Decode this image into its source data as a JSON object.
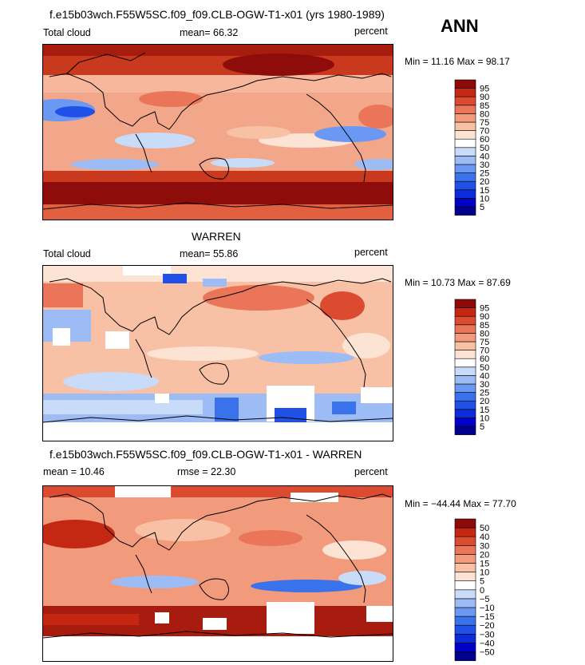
{
  "season": "ANN",
  "panels": [
    {
      "title": "f.e15b03wch.F55W5SC.f09_f09.CLB-OGW-T1-x01 (yrs 1980-1989)",
      "left_label": "Total cloud",
      "mean_label": "mean=  66.32",
      "units": "percent",
      "minmax": "Min =  11.16 Max =  98.17",
      "colorbar": {
        "labels": [
          "5",
          "10",
          "15",
          "20",
          "25",
          "30",
          "40",
          "50",
          "60",
          "70",
          "75",
          "80",
          "85",
          "90",
          "95"
        ],
        "colors": [
          "#00008f",
          "#0000c8",
          "#0c2cdc",
          "#2050e6",
          "#3a72ec",
          "#6a98f2",
          "#9dbcf6",
          "#c8dcfa",
          "#ffffff",
          "#fde3d4",
          "#f8c0a4",
          "#f29b7c",
          "#ea7558",
          "#dc4a2f",
          "#c42712",
          "#8c0a0a"
        ]
      }
    },
    {
      "title": "WARREN",
      "left_label": "Total cloud",
      "mean_label": "mean=  55.86",
      "units": "percent",
      "minmax": "Min =  10.73 Max =  87.69",
      "colorbar": {
        "labels": [
          "5",
          "10",
          "15",
          "20",
          "25",
          "30",
          "40",
          "50",
          "60",
          "70",
          "75",
          "80",
          "85",
          "90",
          "95"
        ],
        "colors": [
          "#00008f",
          "#0000c8",
          "#0c2cdc",
          "#2050e6",
          "#3a72ec",
          "#6a98f2",
          "#9dbcf6",
          "#c8dcfa",
          "#ffffff",
          "#fde3d4",
          "#f8c0a4",
          "#f29b7c",
          "#ea7558",
          "#dc4a2f",
          "#c42712",
          "#8c0a0a"
        ]
      }
    },
    {
      "title": "f.e15b03wch.F55W5SC.f09_f09.CLB-OGW-T1-x01 - WARREN",
      "left_label": "mean =  10.46",
      "mean_label": "rmse =  22.30",
      "units": "percent",
      "minmax": "Min = −44.44 Max =  77.70",
      "colorbar": {
        "labels": [
          "−50",
          "−40",
          "−30",
          "−20",
          "−15",
          "−10",
          "−5",
          "0",
          "5",
          "10",
          "15",
          "20",
          "30",
          "40",
          "50"
        ],
        "colors": [
          "#00008f",
          "#0000c8",
          "#0c2cdc",
          "#2050e6",
          "#3a72ec",
          "#6a98f2",
          "#9dbcf6",
          "#c8dcfa",
          "#ffffff",
          "#fde3d4",
          "#f8c0a4",
          "#f29b7c",
          "#ea7558",
          "#dc4a2f",
          "#c42712",
          "#8c0a0a"
        ]
      }
    }
  ]
}
